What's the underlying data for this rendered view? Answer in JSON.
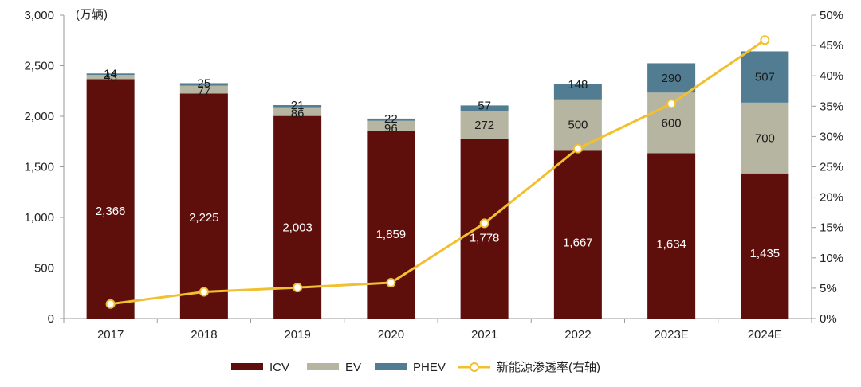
{
  "chart_data": {
    "type": "bar",
    "stacked": true,
    "title": "",
    "ylabel": "(万辆)",
    "y2label": "",
    "ylim": [
      0,
      3000
    ],
    "ylim_right": [
      0,
      50
    ],
    "y_ticks": [
      "0",
      "500",
      "1,000",
      "1,500",
      "2,000",
      "2,500",
      "3,000"
    ],
    "y2_ticks": [
      "0%",
      "5%",
      "10%",
      "15%",
      "20%",
      "25%",
      "30%",
      "35%",
      "40%",
      "45%",
      "50%"
    ],
    "categories": [
      "2017",
      "2018",
      "2019",
      "2020",
      "2021",
      "2022",
      "2023E",
      "2024E"
    ],
    "series": [
      {
        "name": "ICV",
        "type": "bar",
        "color": "#5e0f0c",
        "label_color": "#ffffff",
        "values": [
          2366,
          2225,
          2003,
          1859,
          1778,
          1667,
          1634,
          1435
        ],
        "labels": [
          "2,366",
          "2,225",
          "2,003",
          "1,859",
          "1,778",
          "1,667",
          "1,634",
          "1,435"
        ]
      },
      {
        "name": "EV",
        "type": "bar",
        "color": "#b5b5a1",
        "label_color": "#1a1a1a",
        "values": [
          43,
          77,
          86,
          96,
          272,
          500,
          600,
          700
        ],
        "labels": [
          "43",
          "77",
          "86",
          "96",
          "272",
          "500",
          "600",
          "700"
        ]
      },
      {
        "name": "PHEV",
        "type": "bar",
        "color": "#517c91",
        "label_color": "#1a1a1a",
        "values": [
          14,
          25,
          21,
          22,
          57,
          148,
          290,
          507
        ],
        "labels": [
          "14",
          "25",
          "21",
          "22",
          "57",
          "148",
          "290",
          "507"
        ]
      },
      {
        "name": "新能源渗透率(右轴)",
        "type": "line",
        "axis": "right",
        "color": "#f0c030",
        "values": [
          2.4,
          4.4,
          5.1,
          5.9,
          15.7,
          28.0,
          35.4,
          45.9
        ]
      }
    ],
    "legend": [
      "ICV",
      "EV",
      "PHEV",
      "新能源渗透率(右轴)"
    ],
    "legend_position": "bottom",
    "grid": false
  }
}
